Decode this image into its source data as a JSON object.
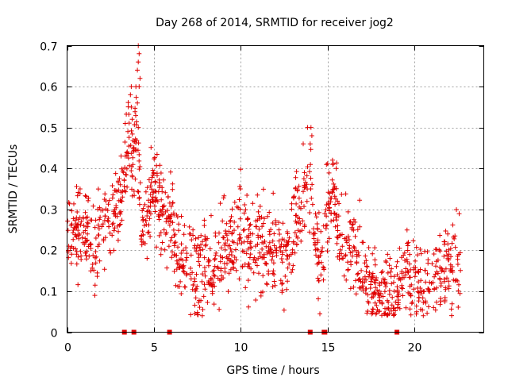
{
  "chart_data": {
    "type": "scatter",
    "title": "Day 268 of 2014, SRMTID for receiver jog2",
    "xlabel": "GPS time / hours",
    "ylabel": "SRMTID / TECUs",
    "xlim": [
      0,
      24
    ],
    "ylim": [
      0,
      0.7
    ],
    "x_ticks": [
      0,
      5,
      10,
      15,
      20
    ],
    "x_tick_labels": [
      "0",
      "5",
      "10",
      "15",
      "20"
    ],
    "y_ticks": [
      0,
      0.1,
      0.2,
      0.3,
      0.4,
      0.5,
      0.6,
      0.7
    ],
    "y_tick_labels": [
      "0",
      "0.1",
      "0.2",
      "0.3",
      "0.4",
      "0.5",
      "0.6",
      "0.7"
    ],
    "grid": true,
    "marker": "+",
    "color": "#e00000",
    "trend_hours": [
      0,
      0.5,
      1,
      1.5,
      2,
      2.5,
      3,
      3.3,
      3.6,
      3.8,
      4.0,
      4.2,
      4.5,
      4.8,
      5.0,
      5.3,
      5.6,
      6,
      6.5,
      7,
      7.5,
      8,
      8.5,
      9,
      9.5,
      10,
      10.5,
      11,
      11.5,
      12,
      12.5,
      13,
      13.5,
      14,
      14.3,
      14.6,
      15,
      15.3,
      15.6,
      16,
      16.5,
      17,
      17.5,
      18,
      18.5,
      19,
      19.5,
      20,
      20.5,
      21,
      21.5,
      22,
      22.5,
      22.7
    ],
    "trend_values": [
      0.24,
      0.22,
      0.25,
      0.2,
      0.25,
      0.27,
      0.3,
      0.4,
      0.47,
      0.38,
      0.5,
      0.33,
      0.25,
      0.33,
      0.38,
      0.31,
      0.28,
      0.27,
      0.17,
      0.16,
      0.14,
      0.17,
      0.15,
      0.22,
      0.2,
      0.27,
      0.2,
      0.24,
      0.17,
      0.22,
      0.19,
      0.27,
      0.31,
      0.38,
      0.22,
      0.16,
      0.3,
      0.32,
      0.24,
      0.23,
      0.22,
      0.13,
      0.12,
      0.11,
      0.1,
      0.1,
      0.13,
      0.13,
      0.11,
      0.13,
      0.15,
      0.16,
      0.18,
      0.13
    ],
    "spread": 0.06,
    "point_count": 1400,
    "spikes": [
      {
        "x": 3.7,
        "y": 0.6
      },
      {
        "x": 3.65,
        "y": 0.58
      },
      {
        "x": 3.7,
        "y": 0.55
      },
      {
        "x": 3.75,
        "y": 0.52
      },
      {
        "x": 4.1,
        "y": 0.7
      },
      {
        "x": 4.15,
        "y": 0.68
      },
      {
        "x": 4.1,
        "y": 0.66
      },
      {
        "x": 4.05,
        "y": 0.64
      },
      {
        "x": 4.2,
        "y": 0.62
      },
      {
        "x": 4.15,
        "y": 0.6
      },
      {
        "x": 4.05,
        "y": 0.56
      },
      {
        "x": 4.1,
        "y": 0.5
      },
      {
        "x": 3.35,
        "y": 0.51
      },
      {
        "x": 3.5,
        "y": 0.49
      },
      {
        "x": 13.6,
        "y": 0.46
      },
      {
        "x": 13.85,
        "y": 0.5
      },
      {
        "x": 14.05,
        "y": 0.5
      },
      {
        "x": 14.1,
        "y": 0.48
      },
      {
        "x": 14.0,
        "y": 0.46
      },
      {
        "x": 15.3,
        "y": 0.41
      },
      {
        "x": 15.5,
        "y": 0.4
      }
    ],
    "baseline_markers": [
      3.3,
      3.85,
      5.9,
      14.0,
      14.8,
      14.85,
      19.0
    ]
  }
}
